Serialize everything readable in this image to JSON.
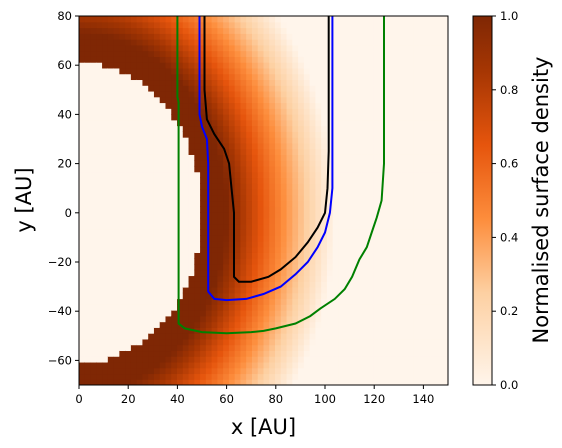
{
  "chart_data": {
    "type": "heatmap",
    "xlabel": "x [AU]",
    "ylabel": "y [AU]",
    "xlim": [
      0,
      150
    ],
    "ylim": [
      -70,
      80
    ],
    "xticks": [
      "0",
      "20",
      "40",
      "60",
      "80",
      "100",
      "120",
      "140"
    ],
    "yticks": [
      "80",
      "60",
      "40",
      "20",
      "0",
      "−20",
      "−40",
      "−60"
    ],
    "grid": false,
    "colormap": "Oranges",
    "colorbar": {
      "label": "Normalised surface density",
      "range": [
        0,
        1
      ],
      "ticks": [
        "1.0",
        "0.8",
        "0.6",
        "0.4",
        "0.2",
        "0.0"
      ],
      "stops": [
        {
          "v": 0.0,
          "color": "#fff5eb"
        },
        {
          "v": 0.25,
          "color": "#fdd0a2"
        },
        {
          "v": 0.45,
          "color": "#fd8d3c"
        },
        {
          "v": 0.65,
          "color": "#e6550d"
        },
        {
          "v": 0.85,
          "color": "#a63603"
        },
        {
          "v": 1.0,
          "color": "#7f2704"
        }
      ]
    },
    "cavity": {
      "x_edge_at_center": 50,
      "y_half_extent": 61
    },
    "density_peak": {
      "x_at_center": 60
    },
    "contours": [
      {
        "color": "#008000",
        "points": [
          [
            40,
            80
          ],
          [
            40,
            47
          ],
          [
            40.5,
            45
          ],
          [
            40.5,
            0
          ],
          [
            40.5,
            -45
          ],
          [
            43,
            -47
          ],
          [
            50,
            -48.5
          ],
          [
            60,
            -49
          ],
          [
            70,
            -48.5
          ],
          [
            75,
            -48
          ],
          [
            80,
            -47
          ],
          [
            88,
            -45
          ],
          [
            94,
            -42
          ],
          [
            98,
            -39
          ],
          [
            104,
            -35
          ],
          [
            108,
            -31
          ],
          [
            111,
            -26
          ],
          [
            114,
            -19
          ],
          [
            117,
            -14
          ],
          [
            119,
            -8
          ],
          [
            121,
            -2
          ],
          [
            123,
            5
          ],
          [
            124,
            20
          ],
          [
            124,
            80
          ]
        ]
      },
      {
        "color": "#0000ff",
        "points": [
          [
            49,
            80
          ],
          [
            49,
            40
          ],
          [
            50,
            35
          ],
          [
            52,
            30
          ],
          [
            52.5,
            20
          ],
          [
            52.5,
            0
          ],
          [
            52.5,
            -20
          ],
          [
            52.5,
            -32
          ],
          [
            55,
            -35
          ],
          [
            60,
            -35.5
          ],
          [
            68,
            -35
          ],
          [
            75,
            -33
          ],
          [
            82,
            -30
          ],
          [
            88,
            -25
          ],
          [
            93,
            -20
          ],
          [
            97,
            -14
          ],
          [
            100,
            -8
          ],
          [
            102,
            0
          ],
          [
            103,
            10
          ],
          [
            103,
            40
          ],
          [
            103,
            80
          ]
        ]
      },
      {
        "color": "#000000",
        "points": [
          [
            51,
            80
          ],
          [
            51,
            50
          ],
          [
            52,
            38
          ],
          [
            55,
            32
          ],
          [
            59,
            26
          ],
          [
            61,
            20
          ],
          [
            62,
            10
          ],
          [
            63,
            0
          ],
          [
            63,
            -10
          ],
          [
            63,
            -20
          ],
          [
            63,
            -26
          ],
          [
            65,
            -28
          ],
          [
            70,
            -28
          ],
          [
            77,
            -26
          ],
          [
            82,
            -23
          ],
          [
            88,
            -18
          ],
          [
            93,
            -12
          ],
          [
            97,
            -6
          ],
          [
            100,
            0
          ],
          [
            101,
            10
          ],
          [
            101.5,
            25
          ],
          [
            101.5,
            80
          ]
        ]
      }
    ]
  }
}
